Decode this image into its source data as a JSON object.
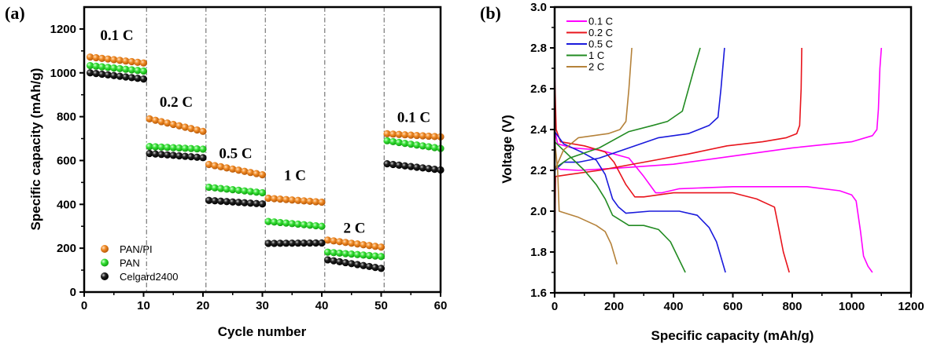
{
  "chart_data": [
    {
      "panel_label": "(a)",
      "type": "scatter",
      "xlabel": "Cycle number",
      "ylabel": "Specific capacity (mAh/g)",
      "xlim": [
        0,
        60
      ],
      "ylim": [
        0,
        1300
      ],
      "xticks": [
        "0",
        "10",
        "20",
        "30",
        "40",
        "50",
        "60"
      ],
      "yticks": [
        "0",
        "200",
        "400",
        "600",
        "800",
        "1000",
        "1200"
      ],
      "legend_position": "bottom-left",
      "segment_dividers": [
        10.5,
        20.5,
        30.5,
        40.5,
        50.5
      ],
      "rate_annotations": [
        {
          "text": "0.1 C",
          "x": 5.5,
          "y": 1150
        },
        {
          "text": "0.2 C",
          "x": 15.5,
          "y": 845
        },
        {
          "text": "0.5 C",
          "x": 25.5,
          "y": 610
        },
        {
          "text": "1 C",
          "x": 35.5,
          "y": 510
        },
        {
          "text": "2 C",
          "x": 45.5,
          "y": 270
        },
        {
          "text": "0.1 C",
          "x": 55.5,
          "y": 775
        }
      ],
      "series": [
        {
          "name": "PAN/PI",
          "color": "#f08a24",
          "segments": [
            {
              "from": 1,
              "to": 10,
              "start": 1072,
              "end": 1045
            },
            {
              "from": 11,
              "to": 20,
              "start": 790,
              "end": 733
            },
            {
              "from": 21,
              "to": 30,
              "start": 582,
              "end": 535
            },
            {
              "from": 31,
              "to": 40,
              "start": 428,
              "end": 410
            },
            {
              "from": 41,
              "to": 50,
              "start": 237,
              "end": 205
            },
            {
              "from": 51,
              "to": 60,
              "start": 722,
              "end": 708
            }
          ]
        },
        {
          "name": "PAN",
          "color": "#35e035",
          "segments": [
            {
              "from": 1,
              "to": 10,
              "start": 1033,
              "end": 1008
            },
            {
              "from": 11,
              "to": 20,
              "start": 664,
              "end": 652
            },
            {
              "from": 21,
              "to": 30,
              "start": 478,
              "end": 453
            },
            {
              "from": 31,
              "to": 40,
              "start": 322,
              "end": 300
            },
            {
              "from": 41,
              "to": 50,
              "start": 182,
              "end": 162
            },
            {
              "from": 51,
              "to": 60,
              "start": 690,
              "end": 655
            }
          ]
        },
        {
          "name": "Celgard2400",
          "color": "#111111",
          "segments": [
            {
              "from": 1,
              "to": 10,
              "start": 1000,
              "end": 972
            },
            {
              "from": 11,
              "to": 20,
              "start": 632,
              "end": 613
            },
            {
              "from": 21,
              "to": 30,
              "start": 418,
              "end": 402
            },
            {
              "from": 31,
              "to": 40,
              "start": 222,
              "end": 224
            },
            {
              "from": 41,
              "to": 50,
              "start": 147,
              "end": 108
            },
            {
              "from": 51,
              "to": 60,
              "start": 585,
              "end": 557
            }
          ]
        }
      ]
    },
    {
      "panel_label": "(b)",
      "type": "line",
      "xlabel": "Specific capacity (mAh/g)",
      "ylabel": "Voltage (V)",
      "xlim": [
        0,
        1200
      ],
      "ylim": [
        1.6,
        3.0
      ],
      "xticks": [
        "0",
        "200",
        "400",
        "600",
        "800",
        "1000",
        "1200"
      ],
      "yticks": [
        "1.6",
        "1.8",
        "2.0",
        "2.2",
        "2.4",
        "2.6",
        "2.8",
        "3.0"
      ],
      "legend_position": "top-left",
      "series": [
        {
          "name": "0.1 C",
          "color": "#ff00ff",
          "discharge": [
            [
              0,
              2.4
            ],
            [
              10,
              2.33
            ],
            [
              60,
              2.31
            ],
            [
              150,
              2.3
            ],
            [
              250,
              2.26
            ],
            [
              300,
              2.17
            ],
            [
              340,
              2.09
            ],
            [
              360,
              2.09
            ],
            [
              420,
              2.11
            ],
            [
              600,
              2.12
            ],
            [
              850,
              2.12
            ],
            [
              960,
              2.1
            ],
            [
              1000,
              2.08
            ],
            [
              1015,
              2.05
            ],
            [
              1030,
              1.9
            ],
            [
              1040,
              1.78
            ],
            [
              1055,
              1.73
            ],
            [
              1070,
              1.7
            ]
          ],
          "charge": [
            [
              0,
              2.22
            ],
            [
              20,
              2.205
            ],
            [
              80,
              2.2
            ],
            [
              200,
              2.21
            ],
            [
              400,
              2.23
            ],
            [
              600,
              2.27
            ],
            [
              800,
              2.31
            ],
            [
              1000,
              2.34
            ],
            [
              1070,
              2.37
            ],
            [
              1085,
              2.4
            ],
            [
              1090,
              2.5
            ],
            [
              1095,
              2.7
            ],
            [
              1100,
              2.8
            ]
          ]
        },
        {
          "name": "0.2 C",
          "color": "#e8141c",
          "discharge": [
            [
              0,
              2.68
            ],
            [
              5,
              2.4
            ],
            [
              20,
              2.34
            ],
            [
              100,
              2.32
            ],
            [
              170,
              2.29
            ],
            [
              200,
              2.24
            ],
            [
              240,
              2.13
            ],
            [
              270,
              2.07
            ],
            [
              300,
              2.07
            ],
            [
              400,
              2.09
            ],
            [
              500,
              2.09
            ],
            [
              600,
              2.09
            ],
            [
              680,
              2.06
            ],
            [
              740,
              2.02
            ],
            [
              750,
              1.95
            ],
            [
              770,
              1.8
            ],
            [
              790,
              1.7
            ]
          ],
          "charge": [
            [
              0,
              1.8
            ],
            [
              3,
              2.17
            ],
            [
              50,
              2.18
            ],
            [
              150,
              2.2
            ],
            [
              300,
              2.24
            ],
            [
              450,
              2.28
            ],
            [
              580,
              2.32
            ],
            [
              700,
              2.34
            ],
            [
              780,
              2.36
            ],
            [
              815,
              2.38
            ],
            [
              825,
              2.42
            ],
            [
              830,
              2.6
            ],
            [
              832,
              2.8
            ]
          ]
        },
        {
          "name": "0.5 C",
          "color": "#1a1adc",
          "discharge": [
            [
              0,
              2.39
            ],
            [
              30,
              2.33
            ],
            [
              90,
              2.29
            ],
            [
              140,
              2.25
            ],
            [
              170,
              2.18
            ],
            [
              195,
              2.06
            ],
            [
              215,
              2.02
            ],
            [
              240,
              1.99
            ],
            [
              320,
              2.0
            ],
            [
              420,
              2.0
            ],
            [
              480,
              1.98
            ],
            [
              520,
              1.92
            ],
            [
              545,
              1.85
            ],
            [
              575,
              1.7
            ]
          ],
          "charge": [
            [
              0,
              2.2
            ],
            [
              30,
              2.24
            ],
            [
              80,
              2.24
            ],
            [
              150,
              2.26
            ],
            [
              250,
              2.31
            ],
            [
              350,
              2.36
            ],
            [
              450,
              2.38
            ],
            [
              520,
              2.42
            ],
            [
              550,
              2.46
            ],
            [
              560,
              2.6
            ],
            [
              572,
              2.8
            ]
          ]
        },
        {
          "name": "1 C",
          "color": "#228b22",
          "discharge": [
            [
              0,
              2.34
            ],
            [
              50,
              2.27
            ],
            [
              100,
              2.2
            ],
            [
              140,
              2.13
            ],
            [
              170,
              2.06
            ],
            [
              195,
              1.98
            ],
            [
              250,
              1.93
            ],
            [
              300,
              1.93
            ],
            [
              350,
              1.91
            ],
            [
              390,
              1.85
            ],
            [
              440,
              1.7
            ]
          ],
          "charge": [
            [
              0,
              2.21
            ],
            [
              50,
              2.26
            ],
            [
              150,
              2.31
            ],
            [
              250,
              2.39
            ],
            [
              330,
              2.42
            ],
            [
              380,
              2.44
            ],
            [
              430,
              2.49
            ],
            [
              470,
              2.7
            ],
            [
              490,
              2.8
            ]
          ]
        },
        {
          "name": "2 C",
          "color": "#b5823a",
          "discharge": [
            [
              0,
              2.35
            ],
            [
              10,
              2.2
            ],
            [
              15,
              2.0
            ],
            [
              80,
              1.97
            ],
            [
              140,
              1.93
            ],
            [
              170,
              1.9
            ],
            [
              190,
              1.84
            ],
            [
              210,
              1.74
            ]
          ],
          "charge": [
            [
              0,
              2.2
            ],
            [
              30,
              2.3
            ],
            [
              80,
              2.36
            ],
            [
              130,
              2.37
            ],
            [
              180,
              2.38
            ],
            [
              220,
              2.4
            ],
            [
              240,
              2.44
            ],
            [
              250,
              2.6
            ],
            [
              260,
              2.8
            ]
          ]
        }
      ]
    }
  ]
}
